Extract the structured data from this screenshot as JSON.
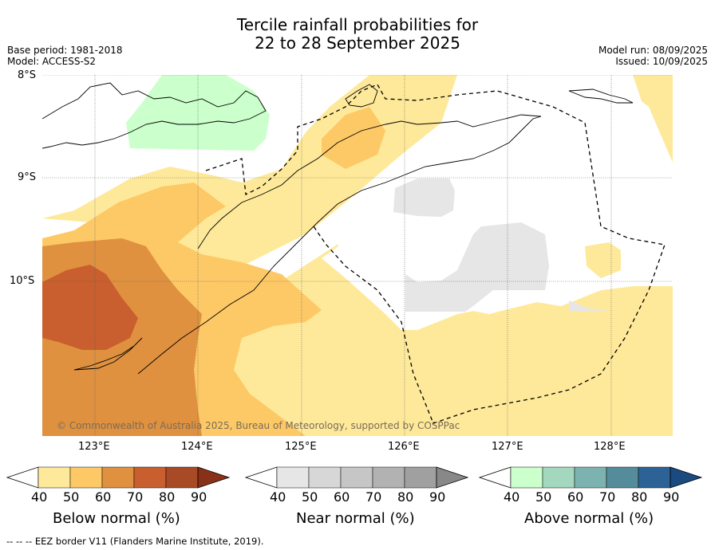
{
  "title_line1": "Tercile rainfall probabilities for",
  "title_line2": "22 to 28 September 2025",
  "meta": {
    "base_period": "Base period: 1981-2018",
    "model": "Model: ACCESS-S2",
    "model_run": "Model run: 08/09/2025",
    "issued": "Issued: 10/09/2025"
  },
  "map": {
    "lat_labels": [
      "8°S",
      "9°S",
      "10°S"
    ],
    "lon_labels": [
      "123°E",
      "124°E",
      "125°E",
      "126°E",
      "127°E",
      "128°E"
    ],
    "copyright": "© Commonwealth of Australia 2025, Bureau of Meteorology, supported by COSPPac",
    "colors": {
      "below_50": "#fee99a",
      "below_60": "#fdc966",
      "below_70": "#df9140",
      "below_80": "#c95f2e",
      "near": "#e6e6e6",
      "above_50": "#cbffcb",
      "coast": "#000000"
    }
  },
  "colorbars": [
    {
      "label": "Below normal (%)",
      "ticks": [
        "40",
        "50",
        "60",
        "70",
        "80",
        "90"
      ],
      "colors": [
        "#ffffff",
        "#fee99a",
        "#fdc966",
        "#df9140",
        "#c95f2e",
        "#a94a26",
        "#8b3018"
      ]
    },
    {
      "label": "Near normal (%)",
      "ticks": [
        "40",
        "50",
        "60",
        "70",
        "80",
        "90"
      ],
      "colors": [
        "#ffffff",
        "#e6e6e6",
        "#d7d7d7",
        "#c6c6c6",
        "#b2b2b2",
        "#a0a0a0",
        "#888888"
      ]
    },
    {
      "label": "Above normal (%)",
      "ticks": [
        "40",
        "50",
        "60",
        "70",
        "80",
        "90"
      ],
      "colors": [
        "#ffffff",
        "#cbffcb",
        "#a3d8be",
        "#7cb3b0",
        "#558c9c",
        "#2d6296",
        "#1a4a80"
      ]
    }
  ],
  "footer": "--  --  -- EEZ border V11 (Flanders Marine Institute, 2019)."
}
